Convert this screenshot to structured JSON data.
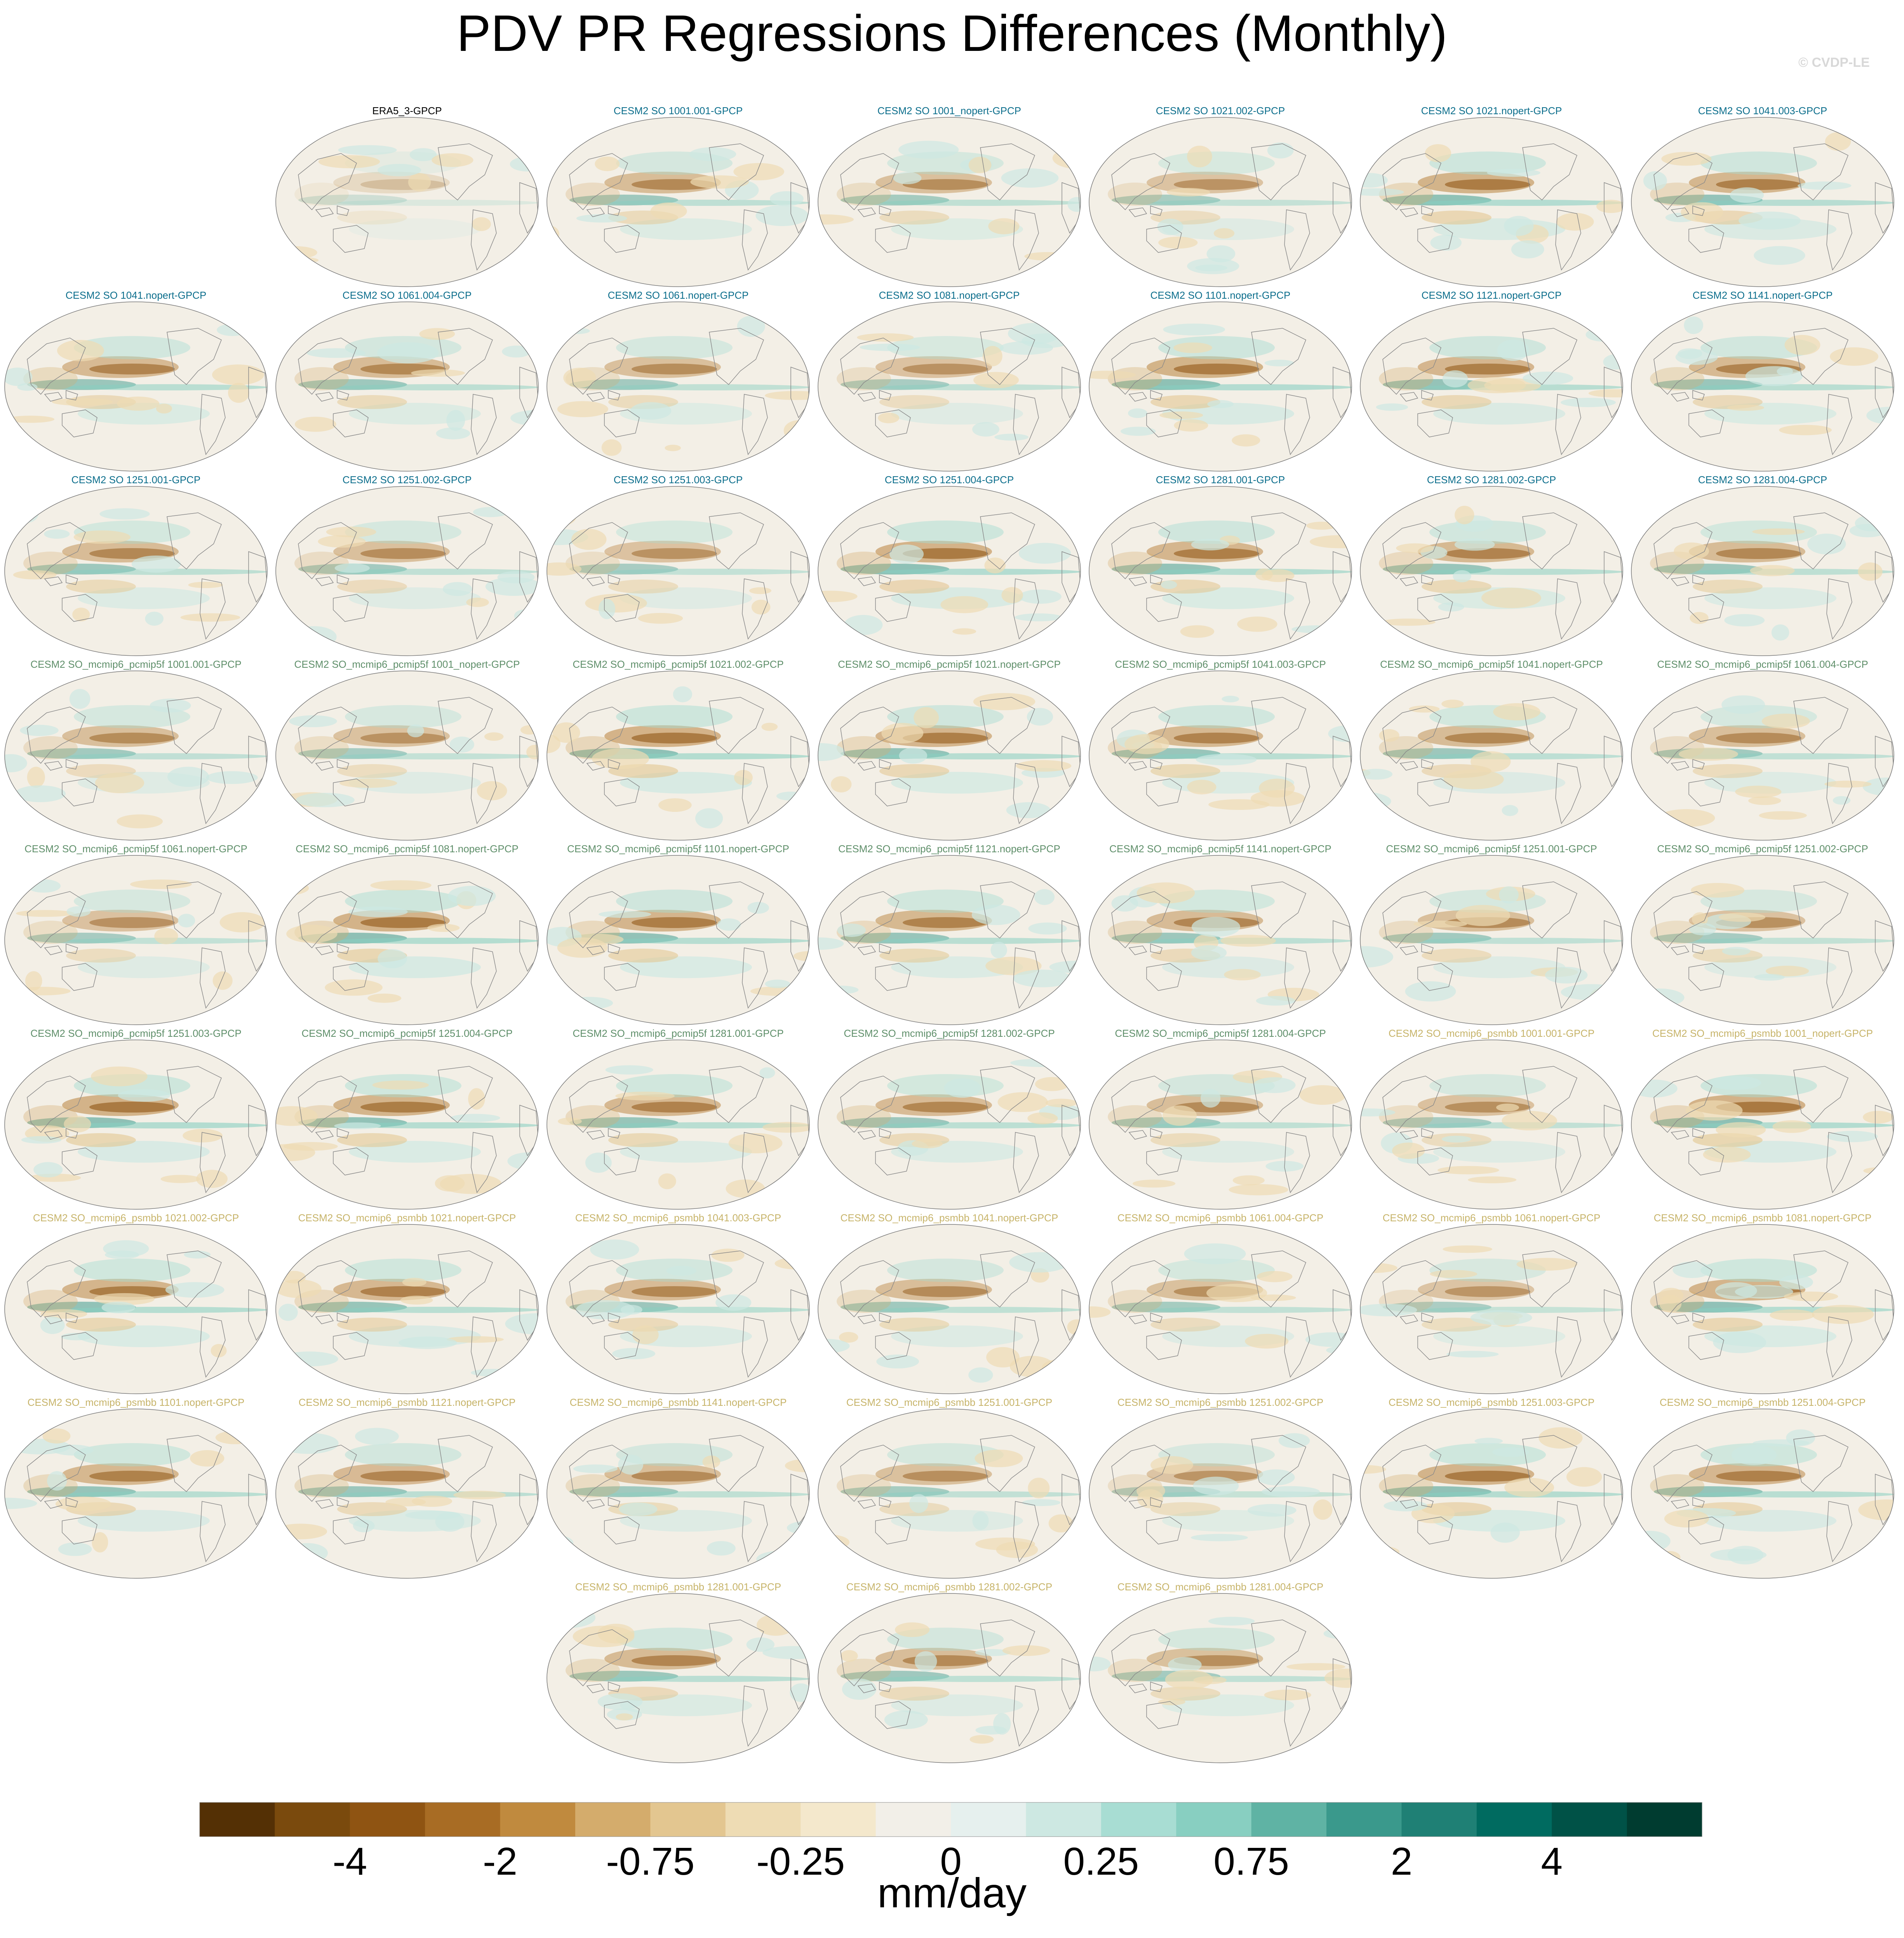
{
  "title": "PDV PR Regressions Differences (Monthly)",
  "watermark": "© CVDP-LE",
  "colors": {
    "era_title": "#000000",
    "cesm_title": "#0c6e8c",
    "pcmip_title": "#5f8f6a",
    "psmbb_title": "#c7b46a",
    "ocean_bg": "#f3efe6",
    "coast": "#8a8a8a"
  },
  "chart_data": {
    "type": "heatmap",
    "description_units": "mm/day",
    "panel_groups": [
      {
        "group": "era",
        "titles": [
          "ERA5_3-GPCP"
        ]
      },
      {
        "group": "cesm",
        "titles": [
          "CESM2 SO 1001.001-GPCP",
          "CESM2 SO 1001_nopert-GPCP",
          "CESM2 SO 1021.002-GPCP",
          "CESM2 SO 1021.nopert-GPCP",
          "CESM2 SO 1041.003-GPCP",
          "CESM2 SO 1041.nopert-GPCP",
          "CESM2 SO 1061.004-GPCP",
          "CESM2 SO 1061.nopert-GPCP",
          "CESM2 SO 1081.nopert-GPCP",
          "CESM2 SO 1101.nopert-GPCP",
          "CESM2 SO 1121.nopert-GPCP",
          "CESM2 SO 1141.nopert-GPCP",
          "CESM2 SO 1251.001-GPCP",
          "CESM2 SO 1251.002-GPCP",
          "CESM2 SO 1251.003-GPCP",
          "CESM2 SO 1251.004-GPCP",
          "CESM2 SO 1281.001-GPCP",
          "CESM2 SO 1281.002-GPCP",
          "CESM2 SO 1281.004-GPCP"
        ]
      },
      {
        "group": "pcmip",
        "titles": [
          "CESM2 SO_mcmip6_pcmip5f 1001.001-GPCP",
          "CESM2 SO_mcmip6_pcmip5f 1001_nopert-GPCP",
          "CESM2 SO_mcmip6_pcmip5f 1021.002-GPCP",
          "CESM2 SO_mcmip6_pcmip5f 1021.nopert-GPCP",
          "CESM2 SO_mcmip6_pcmip5f 1041.003-GPCP",
          "CESM2 SO_mcmip6_pcmip5f 1041.nopert-GPCP",
          "CESM2 SO_mcmip6_pcmip5f 1061.004-GPCP",
          "CESM2 SO_mcmip6_pcmip5f 1061.nopert-GPCP",
          "CESM2 SO_mcmip6_pcmip5f 1081.nopert-GPCP",
          "CESM2 SO_mcmip6_pcmip5f 1101.nopert-GPCP",
          "CESM2 SO_mcmip6_pcmip5f 1121.nopert-GPCP",
          "CESM2 SO_mcmip6_pcmip5f 1141.nopert-GPCP",
          "CESM2 SO_mcmip6_pcmip5f 1251.001-GPCP",
          "CESM2 SO_mcmip6_pcmip5f 1251.002-GPCP",
          "CESM2 SO_mcmip6_pcmip5f 1251.003-GPCP",
          "CESM2 SO_mcmip6_pcmip5f 1251.004-GPCP",
          "CESM2 SO_mcmip6_pcmip5f 1281.001-GPCP",
          "CESM2 SO_mcmip6_pcmip5f 1281.002-GPCP",
          "CESM2 SO_mcmip6_pcmip5f 1281.004-GPCP"
        ]
      },
      {
        "group": "psmbb",
        "titles": [
          "CESM2 SO_mcmip6_psmbb 1001.001-GPCP",
          "CESM2 SO_mcmip6_psmbb 1001_nopert-GPCP",
          "CESM2 SO_mcmip6_psmbb 1021.002-GPCP",
          "CESM2 SO_mcmip6_psmbb 1021.nopert-GPCP",
          "CESM2 SO_mcmip6_psmbb 1041.003-GPCP",
          "CESM2 SO_mcmip6_psmbb 1041.nopert-GPCP",
          "CESM2 SO_mcmip6_psmbb 1061.004-GPCP",
          "CESM2 SO_mcmip6_psmbb 1061.nopert-GPCP",
          "CESM2 SO_mcmip6_psmbb 1081.nopert-GPCP",
          "CESM2 SO_mcmip6_psmbb 1101.nopert-GPCP",
          "CESM2 SO_mcmip6_psmbb 1121.nopert-GPCP",
          "CESM2 SO_mcmip6_psmbb 1141.nopert-GPCP",
          "CESM2 SO_mcmip6_psmbb 1251.001-GPCP",
          "CESM2 SO_mcmip6_psmbb 1251.002-GPCP",
          "CESM2 SO_mcmip6_psmbb 1251.003-GPCP",
          "CESM2 SO_mcmip6_psmbb 1251.004-GPCP",
          "CESM2 SO_mcmip6_psmbb 1281.001-GPCP",
          "CESM2 SO_mcmip6_psmbb 1281.002-GPCP",
          "CESM2 SO_mcmip6_psmbb 1281.004-GPCP"
        ]
      }
    ],
    "colorbar": {
      "label": "mm/day",
      "colors": [
        "#543005",
        "#7a4a0d",
        "#8f5412",
        "#a86c24",
        "#c08a3e",
        "#d4ac6c",
        "#e3c690",
        "#eedcb4",
        "#f4e8cc",
        "#f2efe8",
        "#e6f0ee",
        "#cde8e2",
        "#a8ddd3",
        "#88cfc1",
        "#5fb3a4",
        "#3a998c",
        "#1f8075",
        "#006b60",
        "#005247",
        "#003c30"
      ],
      "tick_labels": [
        "-4",
        "-2",
        "-0.75",
        "-0.25",
        "0",
        "0.25",
        "0.75",
        "2",
        "4"
      ],
      "tick_boundaries": [
        2,
        4,
        6,
        8,
        10,
        12,
        14,
        16,
        18
      ]
    }
  }
}
